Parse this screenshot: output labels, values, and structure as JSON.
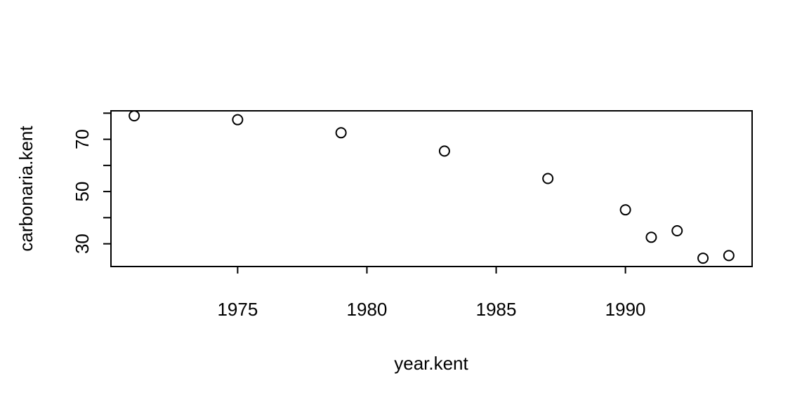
{
  "chart_data": {
    "type": "scatter",
    "title": "",
    "xlabel": "year.kent",
    "ylabel": "carbonaria.kent",
    "xlim": [
      1970.1,
      1994.9
    ],
    "ylim": [
      21.3,
      80.9
    ],
    "xticks": [
      1975,
      1980,
      1985,
      1990
    ],
    "yticks": [
      30,
      40,
      50,
      60,
      70,
      80
    ],
    "ytick_labels": [
      "30",
      "",
      "50",
      "",
      "70",
      ""
    ],
    "grid": false,
    "marker": "open-circle",
    "colors": {
      "points": "#000000",
      "axes": "#000000",
      "background": "#ffffff"
    },
    "series": [
      {
        "x": [
          1971,
          1975,
          1979,
          1983,
          1987,
          1990,
          1991,
          1992,
          1993,
          1994
        ],
        "y": [
          79,
          77.5,
          72.5,
          65.5,
          55,
          43,
          32.5,
          35,
          24.5,
          25.5
        ]
      }
    ]
  }
}
